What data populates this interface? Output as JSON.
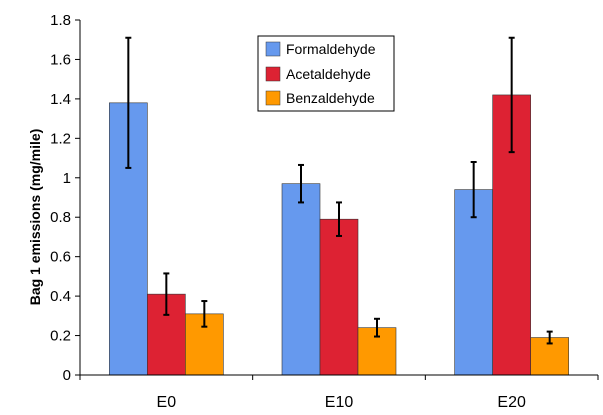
{
  "chart_data": {
    "type": "bar",
    "title": "",
    "xlabel": "",
    "ylabel": "Bag 1 emissions (mg/mile)",
    "ylim": [
      0,
      1.8
    ],
    "yticks": [
      "0",
      "0.2",
      "0.4",
      "0.6",
      "0.8",
      "1",
      "1.2",
      "1.4",
      "1.6",
      "1.8"
    ],
    "categories": [
      "E0",
      "E10",
      "E20"
    ],
    "grid": false,
    "legend_position": "top-center",
    "series": [
      {
        "name": "Formaldehyde",
        "color": "#6699ee",
        "values": [
          1.38,
          0.97,
          0.94
        ],
        "error": [
          0.33,
          0.095,
          0.14
        ]
      },
      {
        "name": "Acetaldehyde",
        "color": "#dd2233",
        "values": [
          0.41,
          0.79,
          1.42
        ],
        "error": [
          0.105,
          0.085,
          0.29
        ]
      },
      {
        "name": "Benzaldehyde",
        "color": "#ff9900",
        "values": [
          0.31,
          0.24,
          0.19
        ],
        "error": [
          0.065,
          0.045,
          0.03
        ]
      }
    ]
  }
}
